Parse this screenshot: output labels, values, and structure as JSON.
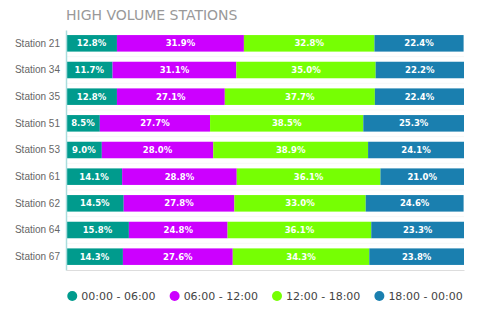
{
  "chart_data": {
    "type": "bar",
    "orientation": "horizontal",
    "stacked": true,
    "title": "HIGH VOLUME STATIONS",
    "categories": [
      "Station 21",
      "Station 34",
      "Station 35",
      "Station 51",
      "Station 53",
      "Station 61",
      "Station 62",
      "Station 64",
      "Station 67"
    ],
    "series": [
      {
        "name": "00:00 - 06:00",
        "color": "#009B8D",
        "values": [
          12.8,
          11.7,
          12.8,
          8.5,
          9.0,
          14.1,
          14.5,
          15.8,
          14.3
        ],
        "value_labels": [
          "12.8%",
          "11.7%",
          "12.8%",
          "8.5%",
          "9.0%",
          "14.1%",
          "14.5%",
          "15.8%",
          "14.3%"
        ]
      },
      {
        "name": "06:00 - 12:00",
        "color": "#CC00FF",
        "values": [
          31.9,
          31.1,
          27.1,
          27.7,
          28.0,
          28.8,
          27.8,
          24.8,
          27.6
        ],
        "value_labels": [
          "31.9%",
          "31.1%",
          "27.1%",
          "27.7%",
          "28.0%",
          "28.8%",
          "27.8%",
          "24.8%",
          "27.6%"
        ]
      },
      {
        "name": "12:00 - 18:00",
        "color": "#76FF03",
        "values": [
          32.8,
          35.0,
          37.7,
          38.5,
          38.9,
          36.1,
          33.0,
          36.1,
          34.3
        ],
        "value_labels": [
          "32.8%",
          "35.0%",
          "37.7%",
          "38.5%",
          "38.9%",
          "36.1%",
          "33.0%",
          "36.1%",
          "34.3%"
        ]
      },
      {
        "name": "18:00 - 00:00",
        "color": "#1A7FAF",
        "values": [
          22.4,
          22.2,
          22.4,
          25.3,
          24.1,
          21.0,
          24.6,
          23.3,
          23.8
        ],
        "value_labels": [
          "22.4%",
          "22.2%",
          "22.4%",
          "25.3%",
          "24.1%",
          "21.0%",
          "24.6%",
          "23.3%",
          "23.8%"
        ]
      }
    ],
    "xlim": [
      0,
      100
    ],
    "tick_labels": "y",
    "data_labels": true,
    "grid": false,
    "legend": "bottom"
  }
}
